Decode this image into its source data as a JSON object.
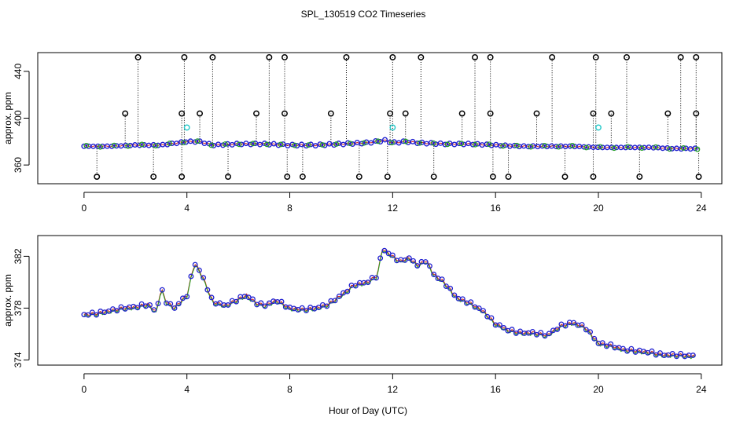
{
  "title": "SPL_130519  CO2 Timeseries",
  "xlabel": "Hour of Day (UTC)",
  "chart_data": [
    {
      "type": "scatter",
      "ylabel": "approx. ppm",
      "xlim": [
        -1.8,
        24.8
      ],
      "ylim": [
        344,
        456
      ],
      "xticks": [
        0,
        4,
        8,
        12,
        16,
        20,
        24
      ],
      "yticks": [
        360,
        400,
        440
      ],
      "baseline": [
        [
          0,
          376
        ],
        [
          1,
          376
        ],
        [
          2,
          377
        ],
        [
          3,
          377
        ],
        [
          4,
          380
        ],
        [
          4.5,
          380
        ],
        [
          5,
          377
        ],
        [
          6,
          378
        ],
        [
          7,
          378
        ],
        [
          8,
          377
        ],
        [
          9,
          377
        ],
        [
          10,
          378
        ],
        [
          11,
          379
        ],
        [
          11.7,
          381
        ],
        [
          12,
          379
        ],
        [
          12.5,
          380
        ],
        [
          13,
          379
        ],
        [
          14,
          378
        ],
        [
          15,
          378
        ],
        [
          16,
          377
        ],
        [
          17,
          376
        ],
        [
          18,
          376
        ],
        [
          19,
          376
        ],
        [
          20,
          375
        ],
        [
          21,
          375
        ],
        [
          22,
          375
        ],
        [
          23,
          374
        ],
        [
          23.8,
          374
        ]
      ],
      "spikes_high": [
        2.1,
        3.9,
        5.0,
        7.2,
        7.8,
        10.2,
        12.0,
        13.1,
        15.2,
        15.8,
        18.2,
        19.9,
        21.1,
        23.2,
        23.8
      ],
      "spikes_mid": [
        1.6,
        3.8,
        4.5,
        6.7,
        7.8,
        9.6,
        11.9,
        12.5,
        14.7,
        15.8,
        17.6,
        19.8,
        20.5,
        22.7,
        23.8
      ],
      "spikes_low": [
        0.5,
        2.7,
        3.8,
        5.6,
        7.9,
        8.5,
        10.7,
        11.8,
        13.6,
        15.9,
        16.5,
        18.7,
        19.8,
        21.6,
        23.9
      ],
      "cyan_points": [
        [
          4.0,
          392
        ],
        [
          12.0,
          392
        ],
        [
          20.0,
          392
        ]
      ]
    },
    {
      "type": "line",
      "ylabel": "approx. ppm",
      "xlim": [
        -1.8,
        24.8
      ],
      "ylim": [
        373.6,
        383.6
      ],
      "xticks": [
        0,
        4,
        8,
        12,
        16,
        20,
        24
      ],
      "yticks": [
        374,
        378,
        382
      ],
      "series": [
        {
          "values": [
            [
              0,
              377.5
            ],
            [
              0.5,
              377.6
            ],
            [
              1,
              377.8
            ],
            [
              1.5,
              378.0
            ],
            [
              2,
              378.1
            ],
            [
              2.5,
              378.3
            ],
            [
              2.8,
              377.7
            ],
            [
              3,
              379.5
            ],
            [
              3.2,
              378.5
            ],
            [
              3.5,
              378.0
            ],
            [
              4,
              379.0
            ],
            [
              4.3,
              381.5
            ],
            [
              4.6,
              380.5
            ],
            [
              5,
              378.5
            ],
            [
              5.5,
              378.2
            ],
            [
              6,
              378.7
            ],
            [
              6.3,
              379.0
            ],
            [
              6.7,
              378.4
            ],
            [
              7,
              378.2
            ],
            [
              7.5,
              378.6
            ],
            [
              8,
              378.0
            ],
            [
              8.5,
              377.9
            ],
            [
              9,
              378.0
            ],
            [
              9.5,
              378.3
            ],
            [
              10,
              379.0
            ],
            [
              10.5,
              379.8
            ],
            [
              11,
              380.0
            ],
            [
              11.4,
              380.5
            ],
            [
              11.6,
              382.6
            ],
            [
              12,
              382.0
            ],
            [
              12.3,
              381.6
            ],
            [
              12.6,
              381.9
            ],
            [
              13,
              381.3
            ],
            [
              13.3,
              381.7
            ],
            [
              13.6,
              380.6
            ],
            [
              14,
              380.0
            ],
            [
              14.5,
              378.8
            ],
            [
              15,
              378.4
            ],
            [
              15.5,
              377.8
            ],
            [
              16,
              376.8
            ],
            [
              16.5,
              376.3
            ],
            [
              17,
              376.1
            ],
            [
              17.5,
              376.1
            ],
            [
              18,
              375.9
            ],
            [
              18.5,
              376.6
            ],
            [
              19,
              376.9
            ],
            [
              19.5,
              376.5
            ],
            [
              20,
              375.3
            ],
            [
              20.5,
              375.1
            ],
            [
              21,
              374.8
            ],
            [
              21.5,
              374.7
            ],
            [
              22,
              374.6
            ],
            [
              22.5,
              374.4
            ],
            [
              23,
              374.4
            ],
            [
              23.8,
              374.3
            ]
          ]
        }
      ]
    }
  ]
}
